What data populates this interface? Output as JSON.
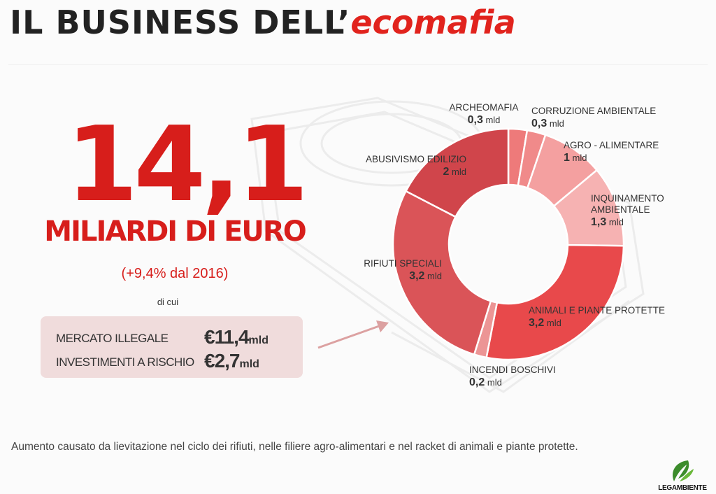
{
  "header": {
    "title_black": "IL BUSINESS DELL’",
    "title_red": "ecomafia"
  },
  "headline": {
    "value": "14,1",
    "unit": "MILIARDI DI EURO",
    "growth": "(+9,4% dal 2016)",
    "of_which": "di cui"
  },
  "breakdown": [
    {
      "label": "MERCATO ILLEGALE",
      "value": "€11,4",
      "unit": "mld"
    },
    {
      "label": "INVESTIMENTI A RISCHIO",
      "value": "€2,7",
      "unit": "mld"
    }
  ],
  "chart_data": {
    "type": "pie",
    "variant": "donut",
    "title": "",
    "unit": "mld",
    "categories": [
      "ARCHEOMAFIA",
      "CORRUZIONE AMBIENTALE",
      "AGRO - ALIMENTARE",
      "INQUINAMENTO AMBIENTALE",
      "ANIMALI E PIANTE PROTETTE",
      "INCENDI BOSCHIVI",
      "RIFIUTI SPECIALI",
      "ABUSIVISMO EDILIZIO"
    ],
    "values": [
      0.3,
      0.3,
      1,
      1.3,
      3.2,
      0.2,
      3.2,
      2
    ],
    "value_labels": [
      "0,3 mld",
      "0,3 mld",
      "1 mld",
      "1,3 mld",
      "3,2 mld",
      "0,2 mld",
      "3,2 mld",
      "2 mld"
    ],
    "colors": [
      "#ee7a7a",
      "#f08a8a",
      "#f4a0a0",
      "#f6b2b2",
      "#e8494b",
      "#ec9595",
      "#da5458",
      "#d0454b"
    ]
  },
  "footnote": "Aumento causato da lievitazione nel ciclo dei rifiuti, nelle filiere agro-alimentari e nel racket di animali e piante protette.",
  "logo": {
    "text": "LEGAMBIENTE"
  }
}
